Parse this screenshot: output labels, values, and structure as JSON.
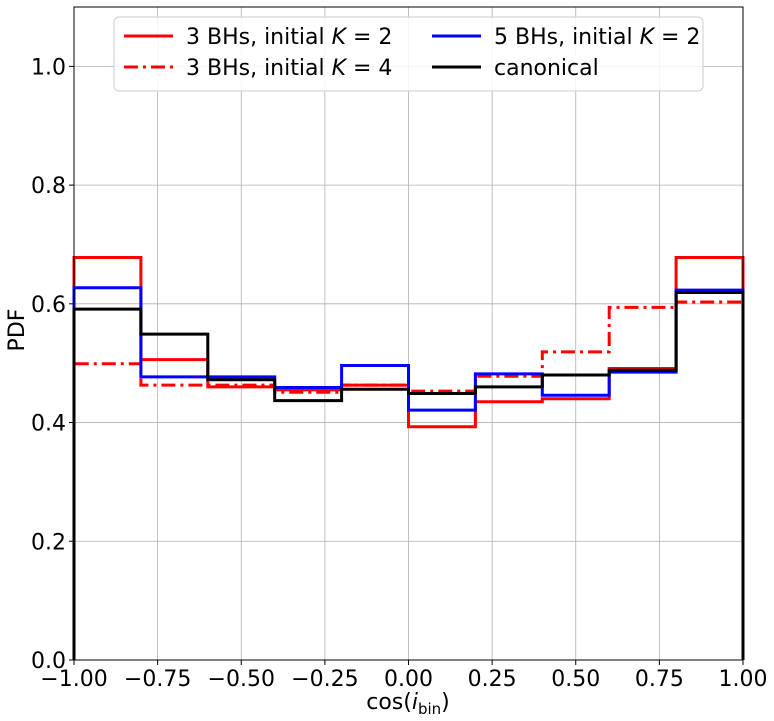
{
  "chart_data": {
    "type": "line",
    "style": "step-histogram",
    "xlabel": "cos(i_bin)",
    "ylabel": "PDF",
    "xlim": [
      -1.0,
      1.0
    ],
    "ylim": [
      0.0,
      1.1
    ],
    "xticks": [
      -1.0,
      -0.75,
      -0.5,
      -0.25,
      0.0,
      0.25,
      0.5,
      0.75,
      1.0
    ],
    "xtick_labels": [
      "−1.00",
      "−0.75",
      "−0.50",
      "−0.25",
      "0.00",
      "0.25",
      "0.50",
      "0.75",
      "1.00"
    ],
    "yticks": [
      0.0,
      0.2,
      0.4,
      0.6,
      0.8,
      1.0
    ],
    "ytick_labels": [
      "0.0",
      "0.2",
      "0.4",
      "0.6",
      "0.8",
      "1.0"
    ],
    "grid": true,
    "legend_position": "top-center",
    "legend_columns": 2,
    "bin_edges": [
      -1.0,
      -0.8,
      -0.6,
      -0.4,
      -0.2,
      0.0,
      0.2,
      0.4,
      0.6,
      0.8,
      1.0
    ],
    "series": [
      {
        "name": "3 BHs, initial K = 2",
        "legend_parts": {
          "text": "3 BHs, initial ",
          "var": "K",
          "rest": " = 2"
        },
        "color": "#ff0000",
        "linestyle": "solid",
        "values": [
          0.678,
          0.506,
          0.46,
          0.455,
          0.463,
          0.393,
          0.435,
          0.44,
          0.491,
          0.678
        ]
      },
      {
        "name": "3 BHs, initial K = 4",
        "legend_parts": {
          "text": "3 BHs, initial ",
          "var": "K",
          "rest": " = 4"
        },
        "color": "#ff0000",
        "linestyle": "dashdot",
        "values": [
          0.499,
          0.463,
          0.463,
          0.451,
          0.463,
          0.453,
          0.478,
          0.519,
          0.594,
          0.603
        ]
      },
      {
        "name": "5 BHs, initial K = 2",
        "legend_parts": {
          "text": "5 BHs, initial ",
          "var": "K",
          "rest": " = 2"
        },
        "color": "#0000ff",
        "linestyle": "solid",
        "values": [
          0.627,
          0.477,
          0.477,
          0.459,
          0.496,
          0.421,
          0.482,
          0.446,
          0.485,
          0.623
        ]
      },
      {
        "name": "canonical",
        "legend_parts": {
          "text": "canonical",
          "var": "",
          "rest": ""
        },
        "color": "#000000",
        "linestyle": "solid",
        "values": [
          0.591,
          0.549,
          0.472,
          0.437,
          0.456,
          0.449,
          0.46,
          0.48,
          0.488,
          0.619
        ]
      }
    ]
  }
}
